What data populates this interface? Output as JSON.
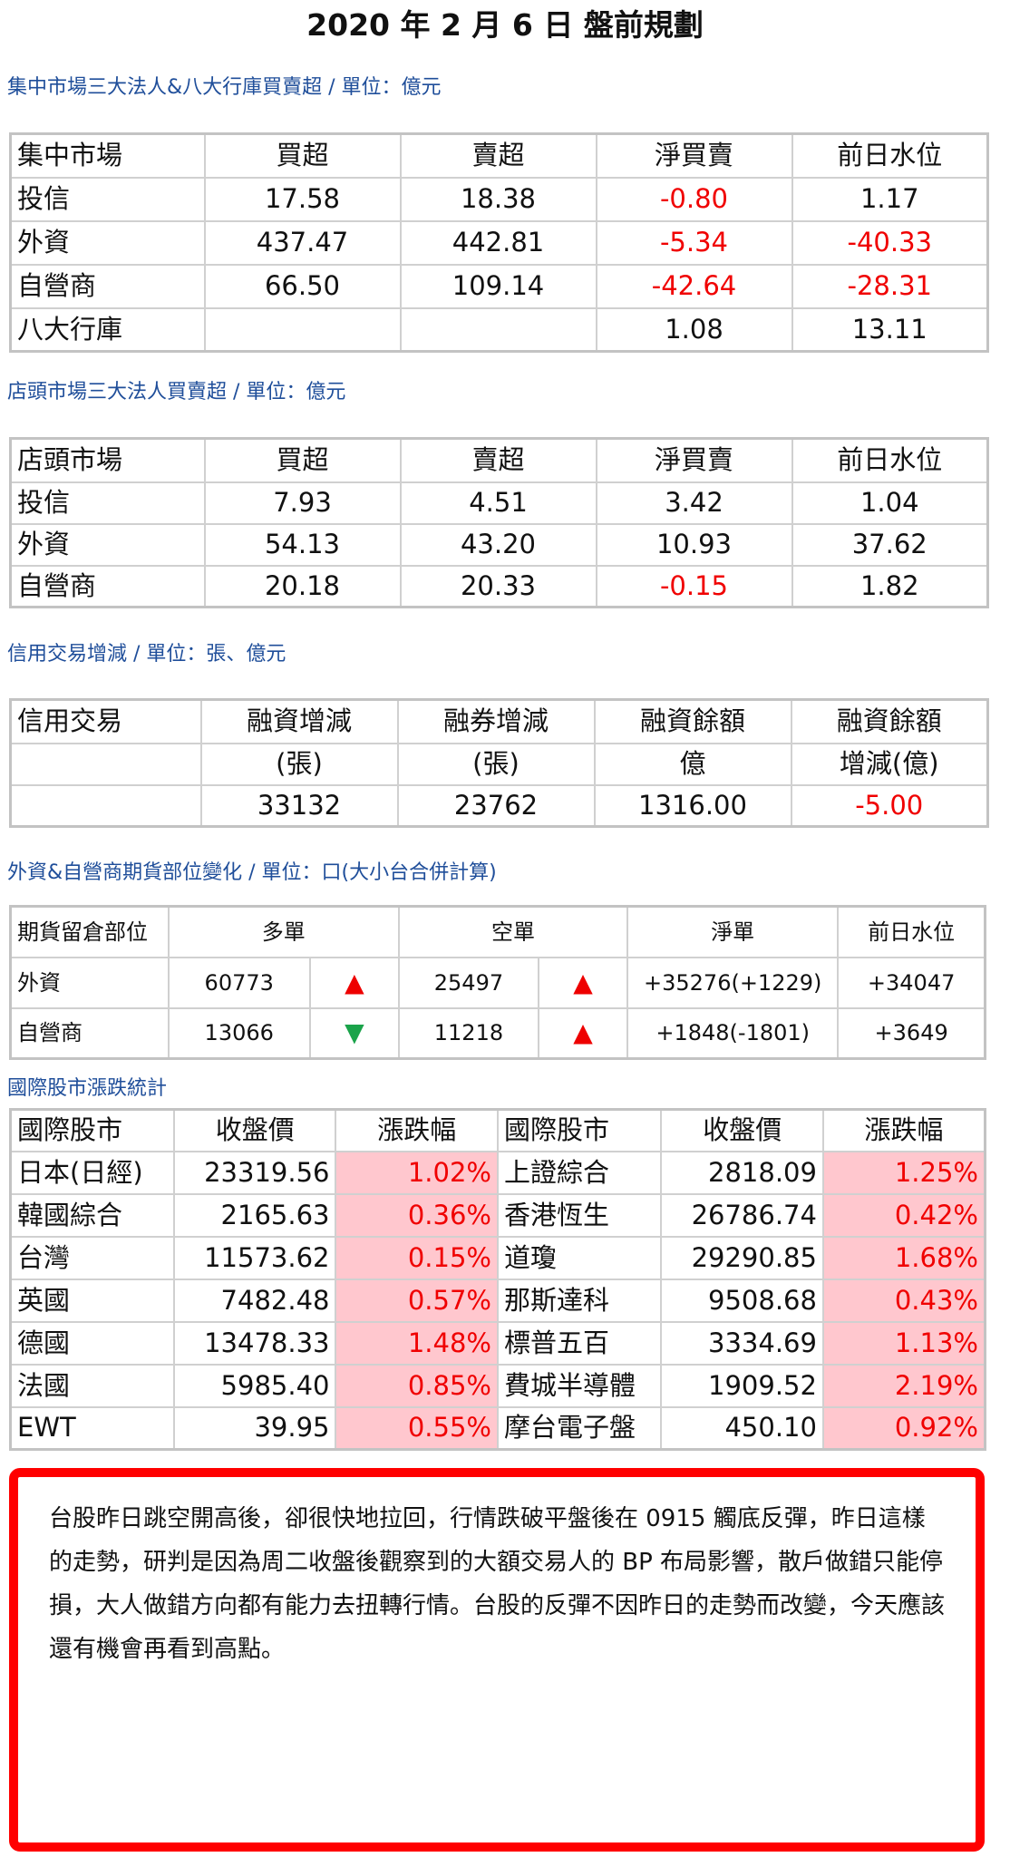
{
  "title": "2020 年 2 月 6 日  盤前規劃",
  "twse": {
    "heading": "集中市場三大法人&八大行庫買賣超 / 單位：億元",
    "header": [
      "集中市場",
      "買超",
      "賣超",
      "淨買賣",
      "前日水位"
    ],
    "rows": [
      [
        "投信",
        "17.58",
        "18.38",
        "-0.80",
        "1.17"
      ],
      [
        "外資",
        "437.47",
        "442.81",
        "-5.34",
        "-40.33"
      ],
      [
        "自營商",
        "66.50",
        "109.14",
        "-42.64",
        "-28.31"
      ],
      [
        "八大行庫",
        "",
        "",
        "1.08",
        "13.11"
      ]
    ]
  },
  "otc": {
    "heading": "店頭市場三大法人買賣超 / 單位：億元",
    "header": [
      "店頭市場",
      "買超",
      "賣超",
      "淨買賣",
      "前日水位"
    ],
    "rows": [
      [
        "投信",
        "7.93",
        "4.51",
        "3.42",
        "1.04"
      ],
      [
        "外資",
        "54.13",
        "43.20",
        "10.93",
        "37.62"
      ],
      [
        "自營商",
        "20.18",
        "20.33",
        "-0.15",
        "1.82"
      ]
    ]
  },
  "margin": {
    "heading": "信用交易增減 / 單位：張、億元",
    "header1": [
      "信用交易",
      "融資增減",
      "融券增減",
      "融資餘額",
      "融資餘額"
    ],
    "header2": [
      "",
      "(張)",
      "(張)",
      "億",
      "增減(億)"
    ],
    "values": [
      "",
      "33132",
      "23762",
      "1316.00",
      "-5.00"
    ]
  },
  "futures": {
    "heading": "外資&自營商期貨部位變化 / 單位：口(大小台合併計算)",
    "header": [
      "期貨留倉部位",
      "多單",
      "空單",
      "淨單",
      "前日水位"
    ],
    "rows": [
      {
        "name": "外資",
        "long": "60773",
        "long_dir": "up",
        "short": "25497",
        "short_dir": "up",
        "net": "+35276(+1229)",
        "prev": "+34047"
      },
      {
        "name": "自營商",
        "long": "13066",
        "long_dir": "down",
        "short": "11218",
        "short_dir": "up",
        "net": "+1848(-1801)",
        "prev": "+3649"
      }
    ]
  },
  "intl": {
    "heading": "國際股市漲跌統計",
    "header": [
      "國際股市",
      "收盤價",
      "漲跌幅",
      "國際股市",
      "收盤價",
      "漲跌幅"
    ],
    "rows": [
      [
        "日本(日經)",
        "23319.56",
        "1.02%",
        "上證綜合",
        "2818.09",
        "1.25%"
      ],
      [
        "韓國綜合",
        "2165.63",
        "0.36%",
        "香港恆生",
        "26786.74",
        "0.42%"
      ],
      [
        "台灣",
        "11573.62",
        "0.15%",
        "道瓊",
        "29290.85",
        "1.68%"
      ],
      [
        "英國",
        "7482.48",
        "0.57%",
        "那斯達科",
        "9508.68",
        "0.43%"
      ],
      [
        "德國",
        "13478.33",
        "1.48%",
        "標普五百",
        "3334.69",
        "1.13%"
      ],
      [
        "法國",
        "5985.40",
        "0.85%",
        "費城半導體",
        "1909.52",
        "2.19%"
      ],
      [
        "EWT",
        "39.95",
        "0.55%",
        "摩台電子盤",
        "450.10",
        "0.92%"
      ]
    ]
  },
  "note": "台股昨日跳空開高後，卻很快地拉回，行情跌破平盤後在 0915 觸底反彈，昨日這樣的走勢，研判是因為周二收盤後觀察到的大額交易人的 BP 布局影響，散戶做錯只能停損，大人做錯方向都有能力去扭轉行情。台股的反彈不因昨日的走勢而改變，今天應該還有機會再看到高點。",
  "colors": {
    "negative": "#f00000",
    "highlight": "#ffc7ce",
    "heading": "#1f4e9a",
    "frame": "#ff0000",
    "arrow_up": "#ee0000",
    "arrow_down": "#1aa34a"
  },
  "icons": {
    "up": "▲",
    "down": "▼"
  }
}
